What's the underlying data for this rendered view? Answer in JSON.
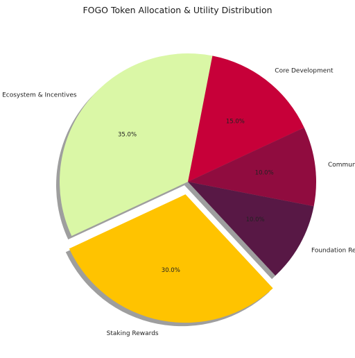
{
  "chart_data": {
    "type": "pie",
    "title": "FOGO Token Allocation & Utility Distribution",
    "slices": [
      {
        "label": "Core Development",
        "value": 15.0,
        "pct_text": "15.0%",
        "color": "#c70039",
        "explode": false
      },
      {
        "label": "Ecosystem & Incentives",
        "value": 35.0,
        "pct_text": "35.0%",
        "color": "#daf7a6",
        "explode": false
      },
      {
        "label": "Staking Rewards",
        "value": 30.0,
        "pct_text": "30.0%",
        "color": "#ffc300",
        "explode": true
      },
      {
        "label": "Foundation Reserve",
        "value": 10.0,
        "pct_text": "10.0%",
        "color": "#581845",
        "explode": false
      },
      {
        "label": "Community Governance",
        "value": 10.0,
        "pct_text": "10.0%",
        "color": "#900c3f",
        "explode": false
      }
    ],
    "start_angle_deg": 25,
    "direction": "counterclockwise",
    "shadow": true,
    "legend": "none"
  }
}
